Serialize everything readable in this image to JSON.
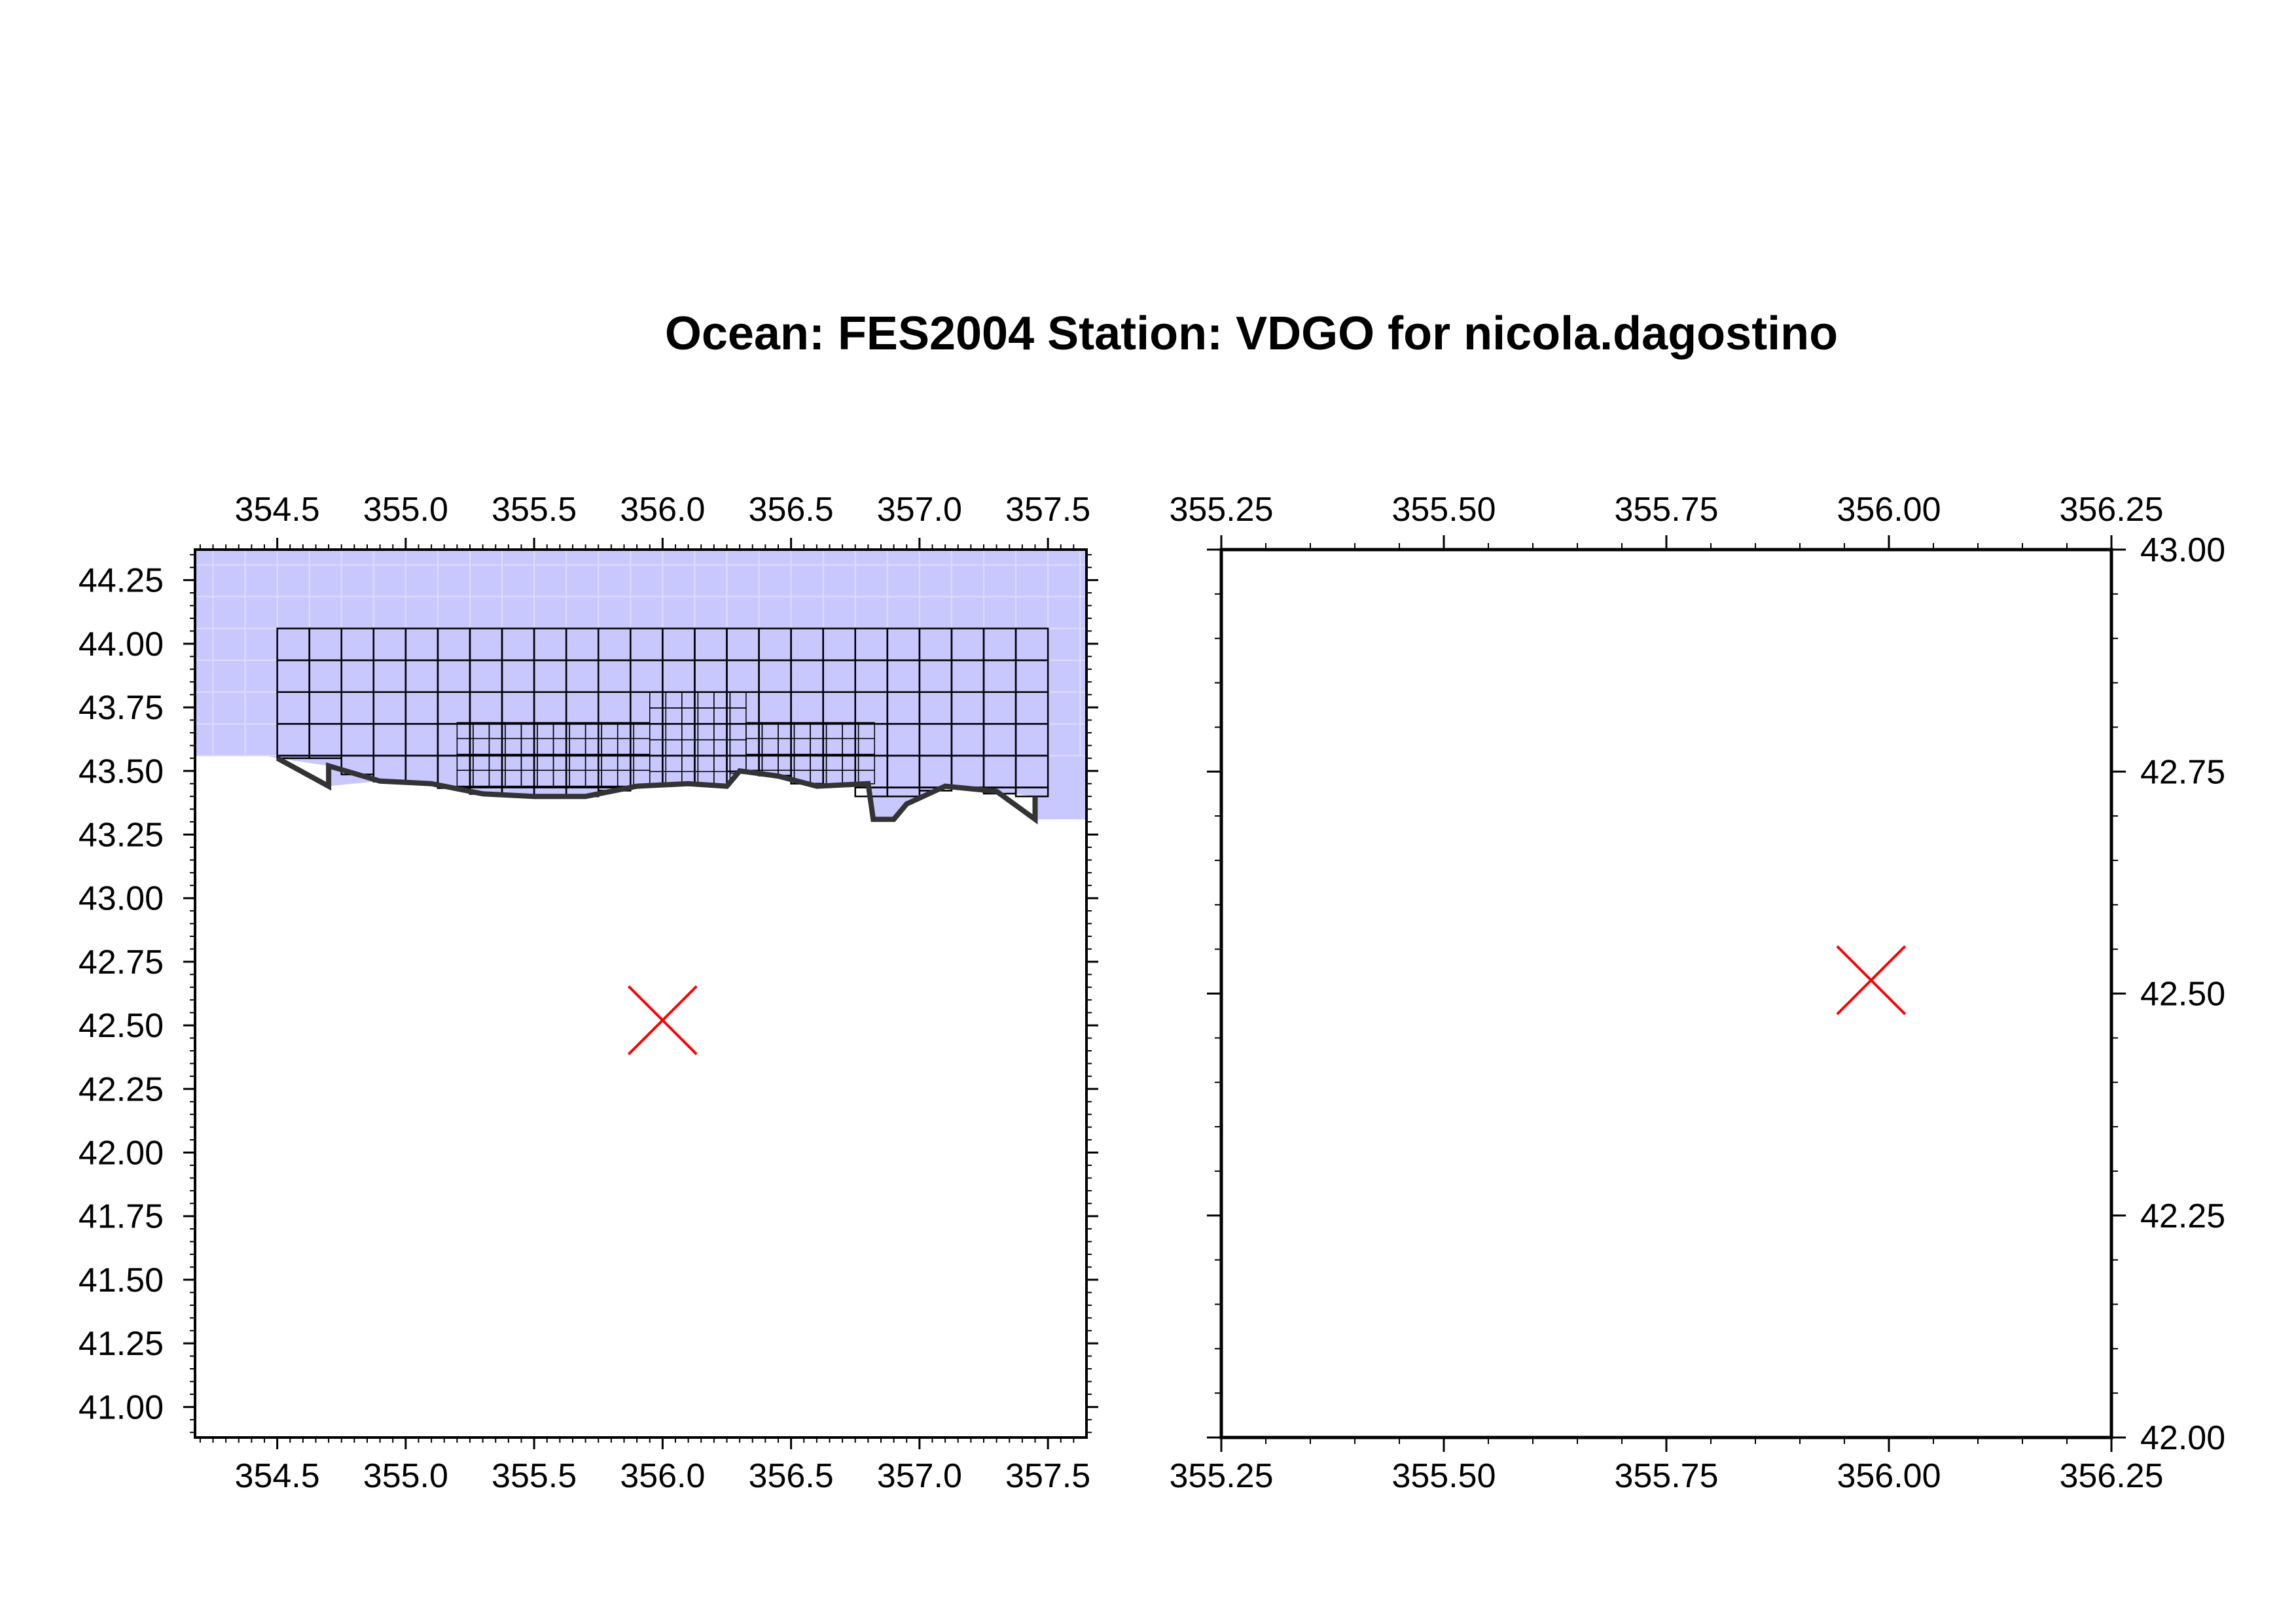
{
  "title": "Ocean: FES2004  Station: VDGO  for nicola.dagostino",
  "colors": {
    "ocean_fill": "#c8c8ff",
    "mesh_lines": "#000000",
    "coastline": "#333333",
    "station_marker": "#ff0000",
    "frame": "#000000"
  },
  "left_panel": {
    "description_type": "map",
    "x_range": [
      354.18,
      357.65
    ],
    "y_range": [
      40.88,
      44.37
    ],
    "x_ticks": [
      "354.5",
      "355.0",
      "355.5",
      "356.0",
      "356.5",
      "357.0",
      "357.5"
    ],
    "y_ticks": [
      "41.00",
      "41.25",
      "41.50",
      "41.75",
      "42.00",
      "42.25",
      "42.50",
      "42.75",
      "43.00",
      "43.25",
      "43.50",
      "43.75",
      "44.00",
      "44.25"
    ],
    "tick_labels_on": [
      "top",
      "bottom",
      "left"
    ],
    "station": {
      "lon": 356.0,
      "lat": 42.52,
      "marker": "x"
    },
    "ocean_outline": [
      [
        354.18,
        44.37
      ],
      [
        357.65,
        44.37
      ],
      [
        357.65,
        43.31
      ],
      [
        357.45,
        43.31
      ],
      [
        357.45,
        43.4
      ],
      [
        357.3,
        43.42
      ],
      [
        357.1,
        43.44
      ],
      [
        356.95,
        43.37
      ],
      [
        356.9,
        43.31
      ],
      [
        356.82,
        43.31
      ],
      [
        356.8,
        43.45
      ],
      [
        356.6,
        43.44
      ],
      [
        356.45,
        43.48
      ],
      [
        356.3,
        43.5
      ],
      [
        356.25,
        43.44
      ],
      [
        356.1,
        43.45
      ],
      [
        355.9,
        43.44
      ],
      [
        355.7,
        43.4
      ],
      [
        355.5,
        43.4
      ],
      [
        355.3,
        43.41
      ],
      [
        355.1,
        43.45
      ],
      [
        354.9,
        43.46
      ],
      [
        354.7,
        43.44
      ],
      [
        354.7,
        43.52
      ],
      [
        354.5,
        43.55
      ],
      [
        354.45,
        43.56
      ],
      [
        354.18,
        43.56
      ]
    ],
    "mesh_region": {
      "lon": [
        354.5,
        357.45
      ],
      "lat_top": 44.06,
      "cell": 0.125
    },
    "fine_mesh_region": {
      "lon": [
        355.2,
        356.8
      ],
      "lat": [
        43.44,
        43.81
      ]
    }
  },
  "right_panel": {
    "description_type": "map",
    "x_range": [
      355.25,
      356.25
    ],
    "y_range": [
      42.0,
      43.0
    ],
    "x_ticks": [
      "355.25",
      "355.50",
      "355.75",
      "356.00",
      "356.25"
    ],
    "y_ticks": [
      "42.00",
      "42.25",
      "42.50",
      "42.75",
      "43.00"
    ],
    "tick_labels_on": [
      "top",
      "bottom",
      "right"
    ],
    "station": {
      "lon": 355.98,
      "lat": 42.515,
      "marker": "x"
    }
  }
}
